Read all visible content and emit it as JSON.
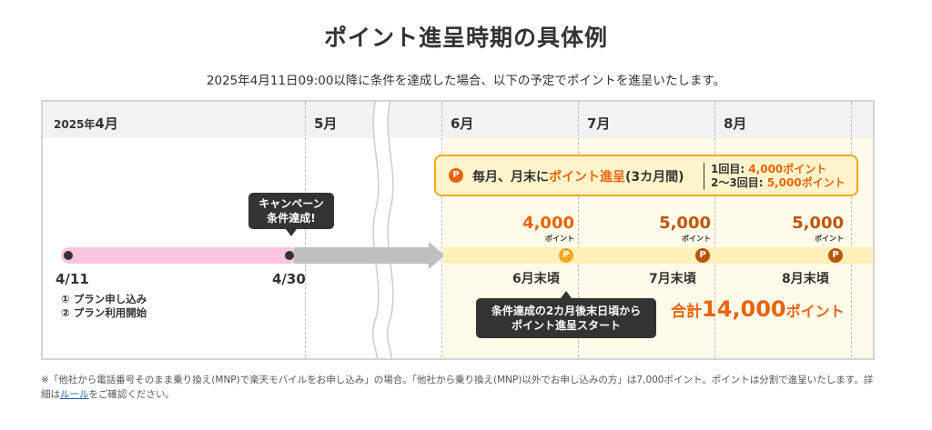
{
  "title": "ポイント進呈時期の具体例",
  "subtitle": "2025年4月11日09:00以降に条件を達成した場合、以下の予定でポイントを進呈いたします。",
  "months": {
    "april_year": "2025年",
    "april": "4月",
    "may": "5月",
    "june": "6月",
    "july": "7月",
    "august": "8月"
  },
  "timeline": {
    "start_date": "4/11",
    "end_date": "4/30",
    "steps": [
      "① プラン申し込み",
      "② プラン利用開始"
    ],
    "campaign_bubble": [
      "キャンペーン",
      "条件達成!"
    ],
    "start_bubble": [
      "条件達成の2カ月後末日頃から",
      "ポイント進呈スタート"
    ]
  },
  "monthly": {
    "icon": "P",
    "text_prefix": "毎月、月末に",
    "text_highlight": "ポイント進呈",
    "text_suffix": "(3カ月間)",
    "detail_1_label": "1回目: ",
    "detail_1_value": "4,000ポイント",
    "detail_2_label": "2〜3回目: ",
    "detail_2_value": "5,000ポイント"
  },
  "payouts": [
    {
      "amount": "4,000",
      "unit": "ポイント",
      "icon": "P",
      "date": "6月末頃",
      "color": "#e8640c",
      "icon_color": "#f5a623"
    },
    {
      "amount": "5,000",
      "unit": "ポイント",
      "icon": "P",
      "date": "7月末頃",
      "color": "#c0550a",
      "icon_color": "#b8570b"
    },
    {
      "amount": "5,000",
      "unit": "ポイント",
      "icon": "P",
      "date": "8月末頃",
      "color": "#c0550a",
      "icon_color": "#b8570b"
    }
  ],
  "total": {
    "prefix": "合計",
    "amount": "14,000",
    "suffix": "ポイント"
  },
  "footnote": {
    "text1": "※「他社から電話番号そのまま乗り換え(MNP)で楽天モバイルをお申し込み」の場合。「他社から乗り換え(MNP)以外でお申し込みの方」は7,000ポイント。ポイントは分割で進呈いたします。詳細は",
    "link": "ルール",
    "text2": "をご確認ください。"
  },
  "colors": {
    "accent_orange": "#e8640c",
    "pink_bar": "#f9c4de",
    "gray_bar": "#bfbfbf",
    "yellow_bar": "#fdf0b8"
  }
}
